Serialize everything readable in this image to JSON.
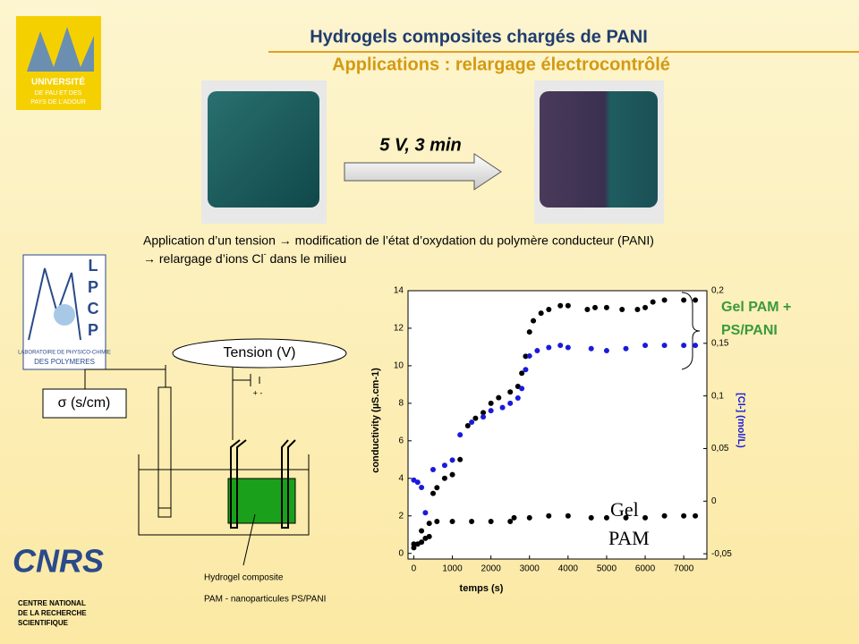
{
  "slide": {
    "title": "Hydrogels composites chargés de PANI",
    "subtitle": "Applications : relargage électrocontrôlé",
    "arrow_label": "5 V, 3 min",
    "paragraph_line1": "Application d’un tension → modification de l’état d’oxydation du polymère conducteur (PANI)",
    "paragraph_line2a": "→ relargage d’ions Cl",
    "paragraph_line2_sup": "-",
    "paragraph_line2b": " dans le milieu",
    "tension": "Tension (V)",
    "sigma": "σ (s/cm)",
    "polarity": "+ -",
    "hydrogel_line1": "Hydrogel composite",
    "hydrogel_line2": "PAM -  nanoparticules PS/PANI",
    "univ_logo": [
      "UNIVERSITÉ",
      "DE PAU ET DES",
      "PAYS DE L’ADOUR"
    ],
    "lpcp_letters": [
      "L",
      "P",
      "C",
      "P"
    ],
    "lpcp_text": [
      "LABORATOIRE DE PHYSICO-CHIMIE",
      "DES POLYMERES"
    ],
    "cnrs_logo": "CNRS",
    "cnrs_text": [
      "CENTRE NATIONAL",
      "DE LA RECHERCHE",
      "SCIENTIFIQUE"
    ]
  },
  "chart_data": {
    "type": "scatter",
    "x_label": "temps (s)",
    "y_label": "conductivity (µS.cm-1)",
    "y2_label": "[Cl-] (mol/L)",
    "annotations": [
      [
        "Gel PAM +",
        "PS/PANI"
      ],
      [
        "Gel",
        "PAM"
      ]
    ],
    "xlim": [
      -150,
      7600
    ],
    "xticks": [
      0,
      1000,
      2000,
      3000,
      4000,
      5000,
      6000,
      7000
    ],
    "ylim": [
      -0.3,
      14
    ],
    "yticks": [
      0,
      2,
      4,
      6,
      8,
      10,
      12,
      14
    ],
    "y2lim": [
      -0.055,
      0.2
    ],
    "y2ticks": [
      {
        "value": -0.05,
        "label": "-0,05"
      },
      0,
      {
        "value": 0.05,
        "label": "0,05"
      },
      {
        "value": 0.1,
        "label": "0,1"
      },
      {
        "value": 0.15,
        "label": "0,15"
      },
      {
        "value": 0.2,
        "label": "0,2"
      }
    ],
    "series": [
      {
        "color": "#000000",
        "x": [
          0,
          100,
          200,
          300,
          400,
          500,
          600,
          800,
          1000,
          1200,
          1400,
          1600,
          1800,
          2000,
          2200,
          2500,
          2700,
          2800,
          2900,
          3000,
          3100,
          3300,
          3500,
          3800,
          4000,
          4500,
          4700,
          5000,
          5400,
          5800,
          6000,
          6200,
          6500,
          7000,
          7300
        ],
        "values": [
          0.3,
          0.5,
          0.6,
          0.8,
          0.9,
          3.2,
          3.5,
          4,
          4.2,
          5,
          6.8,
          7.2,
          7.5,
          8,
          8.3,
          8.6,
          8.9,
          9.6,
          10.5,
          11.8,
          12.4,
          12.8,
          13,
          13.2,
          13.2,
          13,
          13.1,
          13.1,
          13,
          13,
          13.1,
          13.4,
          13.5,
          13.5,
          13.5
        ]
      },
      {
        "color": "#1a1adc",
        "axis": "y2",
        "x": [
          0,
          100,
          200,
          300,
          500,
          800,
          1000,
          1200,
          1500,
          1800,
          2000,
          2300,
          2500,
          2700,
          2800,
          2900,
          3000,
          3200,
          3500,
          3800,
          4000,
          4600,
          5000,
          5500,
          6000,
          6500,
          7000,
          7300
        ],
        "values": [
          0.02,
          0.018,
          0.013,
          -0.011,
          0.03,
          0.034,
          0.039,
          0.063,
          0.075,
          0.08,
          0.086,
          0.089,
          0.093,
          0.098,
          0.107,
          0.125,
          0.138,
          0.143,
          0.146,
          0.148,
          0.146,
          0.145,
          0.143,
          0.145,
          0.148,
          0.148,
          0.148,
          0.148
        ]
      },
      {
        "color": "#000000",
        "x": [
          0,
          200,
          400,
          600,
          1000,
          1500,
          2000,
          2500,
          2600,
          3000,
          3500,
          4000,
          4600,
          5000,
          5500,
          6000,
          6500,
          7000,
          7300
        ],
        "values": [
          0.5,
          1.2,
          1.6,
          1.7,
          1.7,
          1.7,
          1.7,
          1.7,
          1.9,
          1.9,
          2,
          2,
          1.9,
          1.9,
          1.9,
          1.9,
          2,
          2,
          2
        ]
      }
    ]
  }
}
